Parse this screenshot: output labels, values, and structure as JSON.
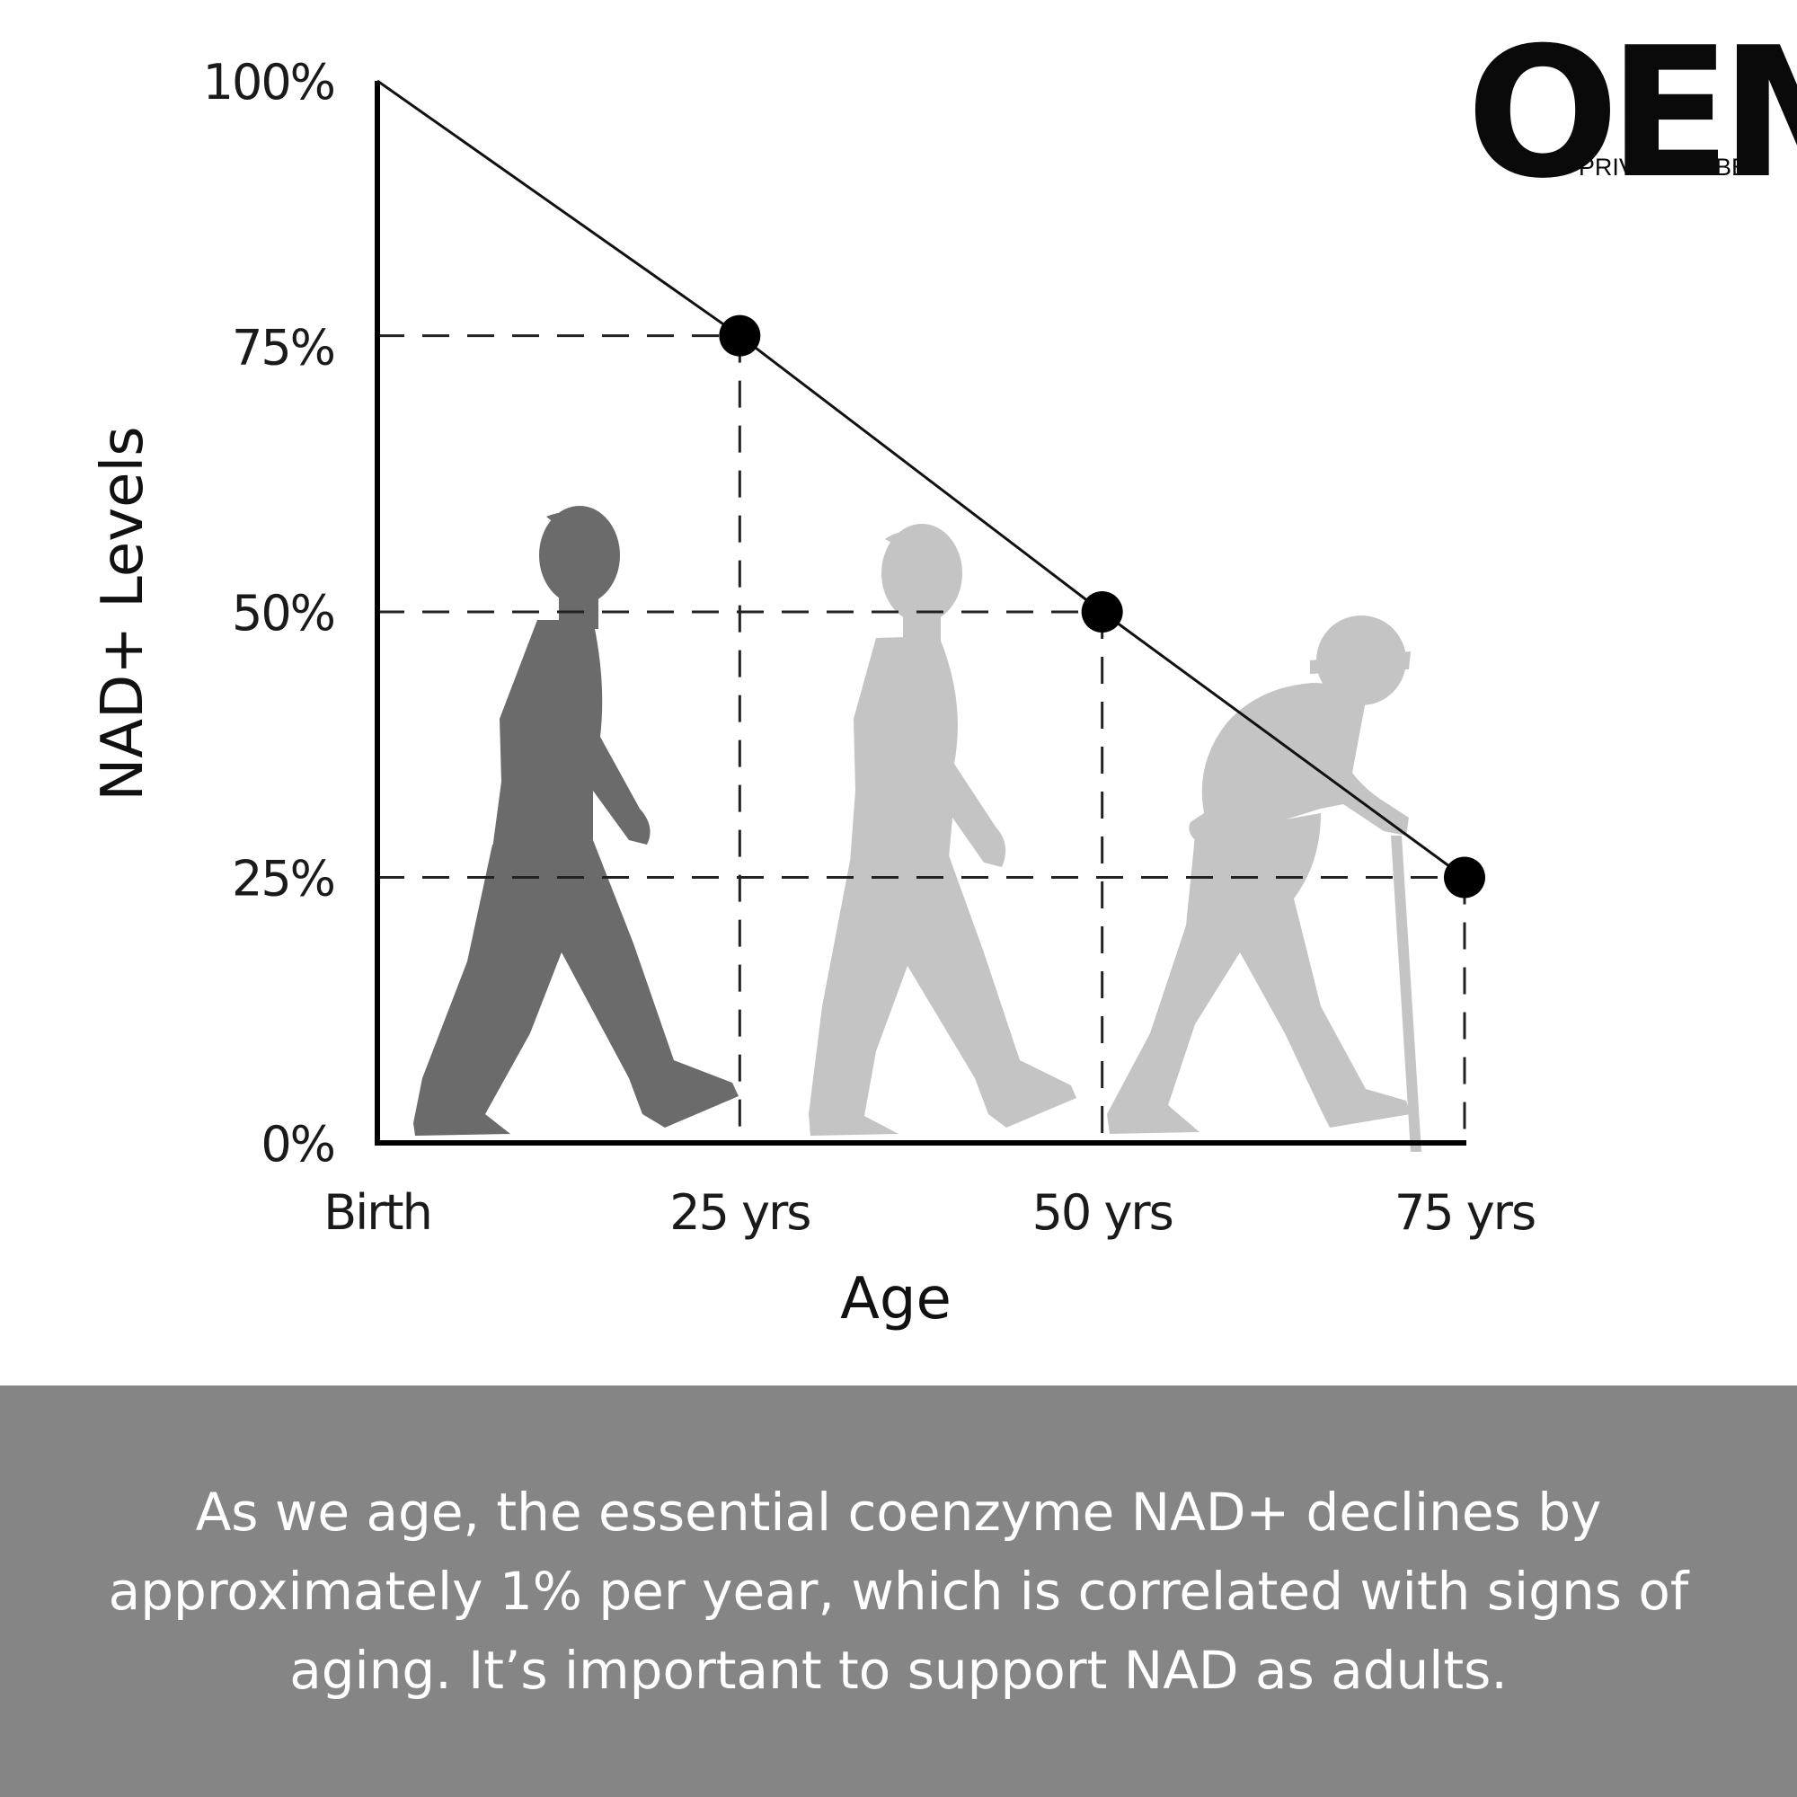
{
  "logo": {
    "main": "OEM",
    "sub": "PRIVATE LABEL"
  },
  "chart_data": {
    "type": "line",
    "title": "",
    "xlabel": "Age",
    "ylabel": "NAD+ Levels",
    "x": [
      0,
      25,
      50,
      75
    ],
    "x_ticks": [
      "Birth",
      "25 yrs",
      "50 yrs",
      "75 yrs"
    ],
    "y_ticks": [
      "0%",
      "25%",
      "50%",
      "75%",
      "100%"
    ],
    "ylim": [
      0,
      100
    ],
    "xlim": [
      0,
      75
    ],
    "series": [
      {
        "values": [
          100,
          76,
          50,
          25
        ]
      }
    ],
    "marked_points": [
      {
        "x": 25,
        "y": 76
      },
      {
        "x": 50,
        "y": 50
      },
      {
        "x": 75,
        "y": 25
      }
    ],
    "guide_lines": "dashed",
    "grid": false
  },
  "caption": {
    "text": "As we age, the essential coenzyme NAD+ declines by approximately 1% per year, which is correlated with signs of aging. It’s important to support NAD as adults."
  },
  "colors": {
    "caption_bg": "#858585",
    "caption_text": "#ffffff",
    "figure_young": "#6b6b6b",
    "figure_old": "#c4c4c4",
    "line": "#111111"
  }
}
